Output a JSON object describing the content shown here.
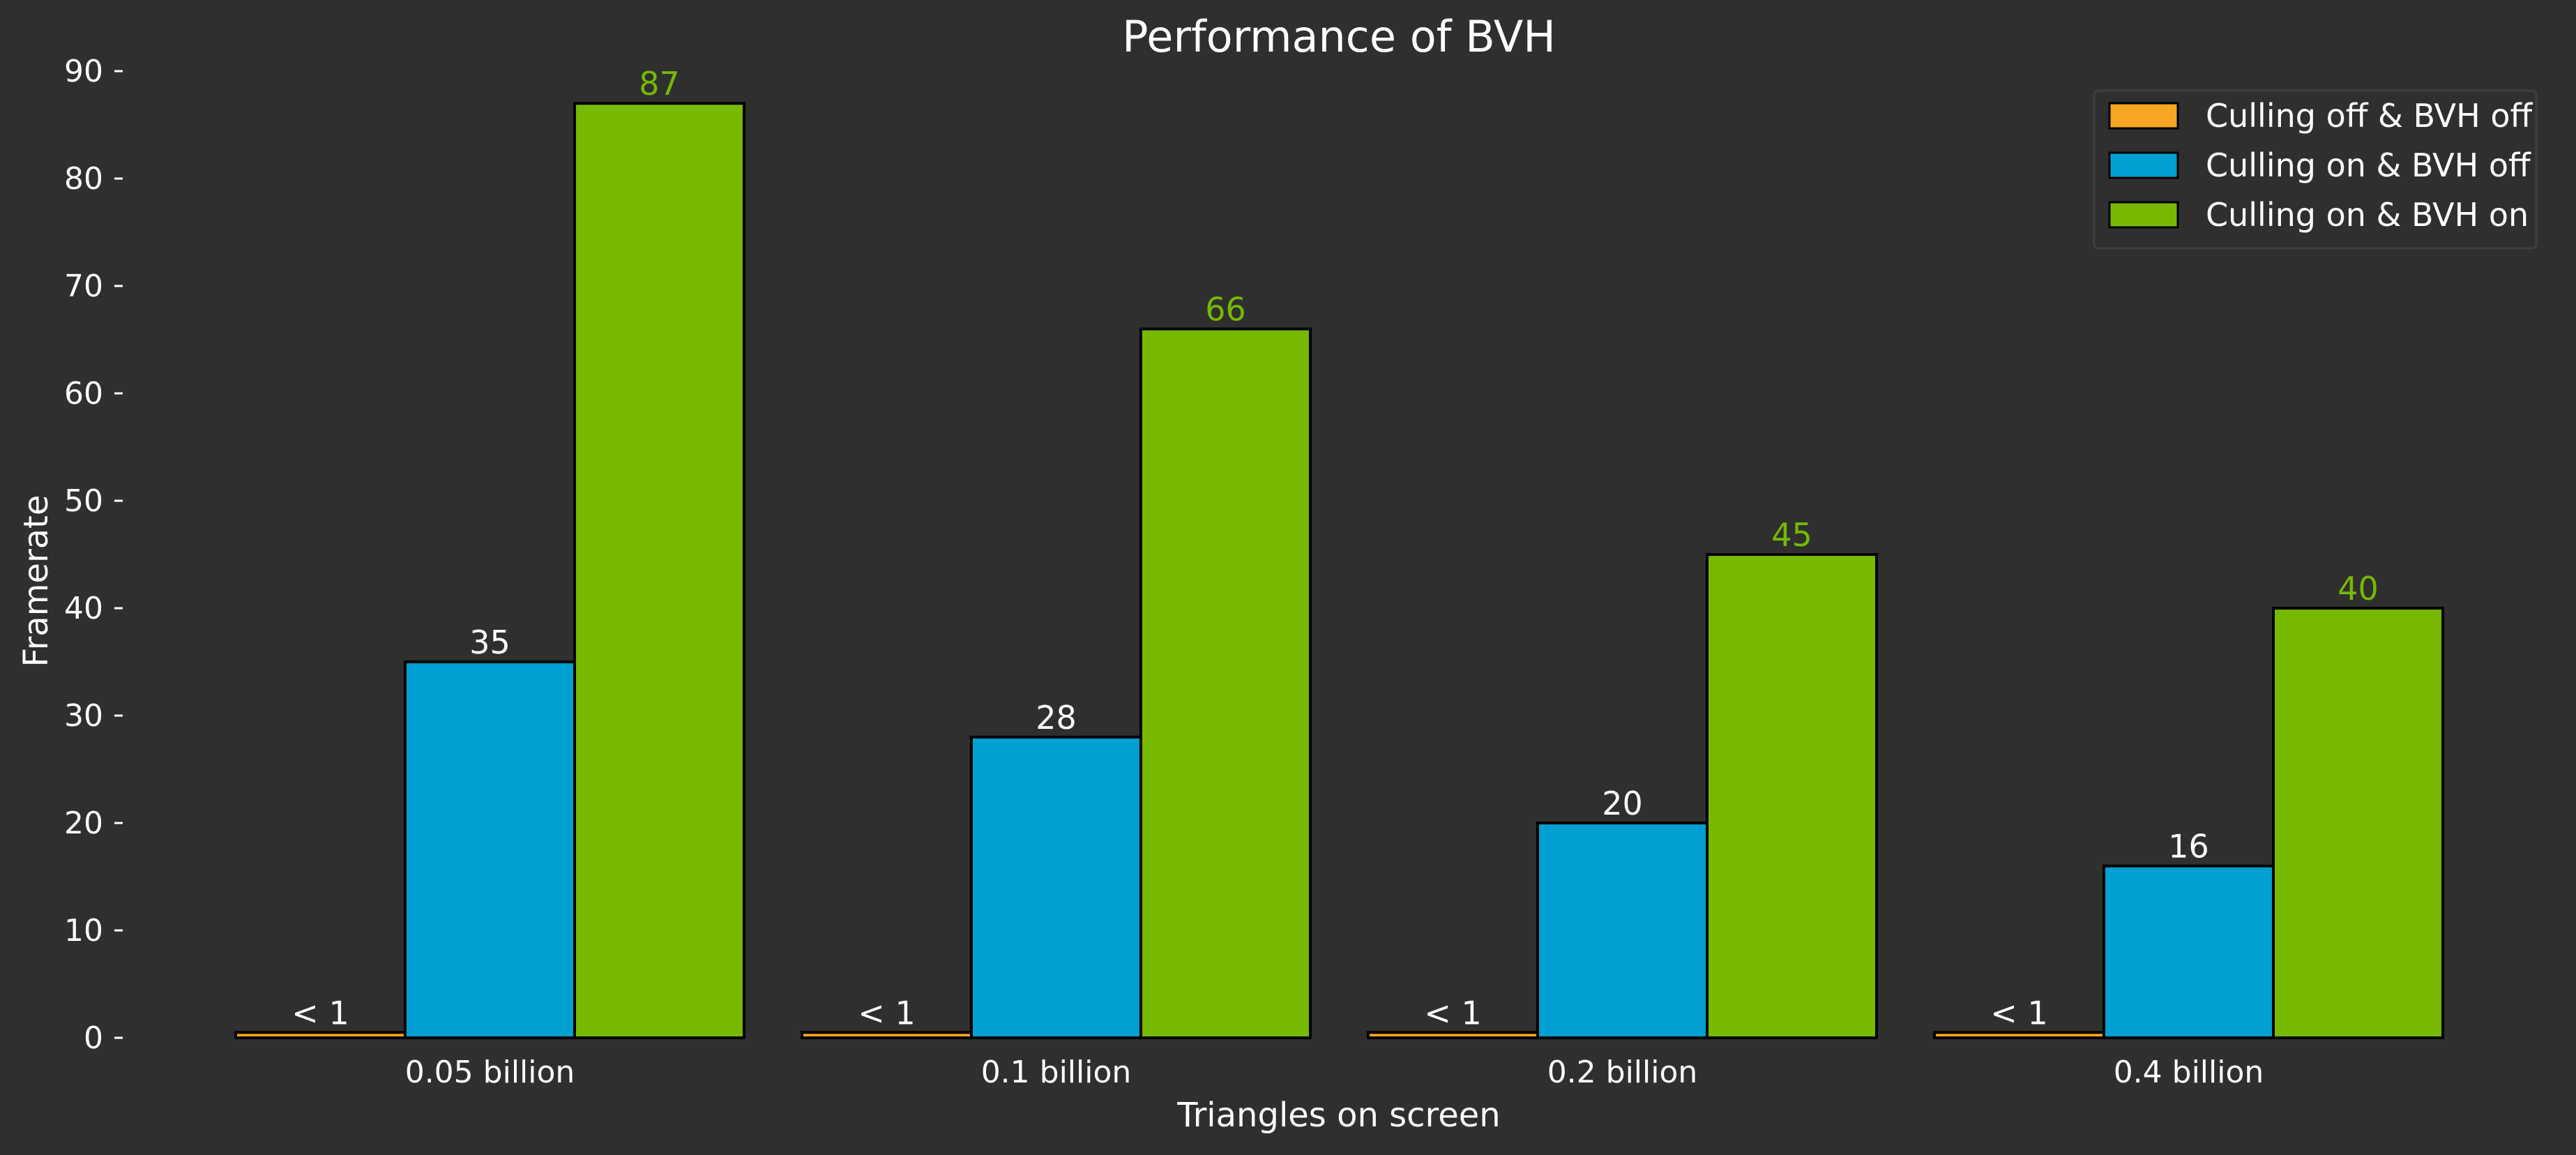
{
  "chart_data": {
    "type": "bar",
    "title": "Performance of BVH",
    "xlabel": "Triangles on screen",
    "ylabel": "Framerate",
    "categories": [
      "0.05 billion",
      "0.1 billion",
      "0.2 billion",
      "0.4 billion"
    ],
    "ylim": [
      0,
      90
    ],
    "yticks": [
      0,
      10,
      20,
      30,
      40,
      50,
      60,
      70,
      80,
      90
    ],
    "grid": false,
    "legend_position": "top-right",
    "series": [
      {
        "name": "Culling off & BVH off",
        "color": "#f5a623",
        "label_color": "#ffffff",
        "values": [
          0.5,
          0.5,
          0.5,
          0.5
        ],
        "data_labels": [
          "< 1",
          "< 1",
          "< 1",
          "< 1"
        ]
      },
      {
        "name": "Culling on & BVH off",
        "color": "#00a0d2",
        "label_color": "#ffffff",
        "values": [
          35,
          28,
          20,
          16
        ],
        "data_labels": [
          "35",
          "28",
          "20",
          "16"
        ]
      },
      {
        "name": "Culling on & BVH on",
        "color": "#76b900",
        "label_color": "#76b900",
        "values": [
          87,
          66,
          45,
          40
        ],
        "data_labels": [
          "87",
          "66",
          "45",
          "40"
        ]
      }
    ]
  }
}
